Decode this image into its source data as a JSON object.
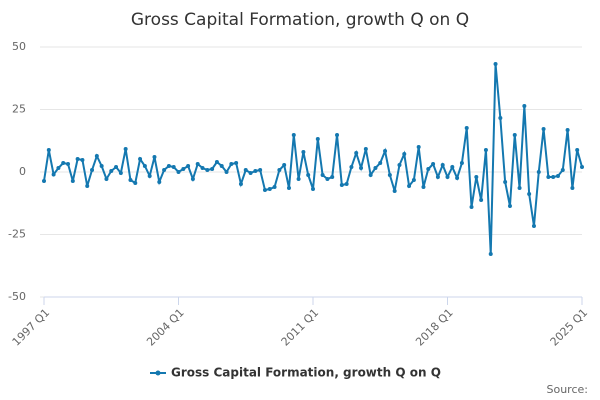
{
  "chart_data": {
    "type": "line",
    "title": "Gross Capital Formation, growth Q on Q",
    "source_label": "Source:",
    "categories": [
      "1997 Q1",
      null,
      null,
      null,
      null,
      null,
      null,
      null,
      null,
      null,
      null,
      null,
      null,
      null,
      null,
      null,
      null,
      null,
      null,
      null,
      null,
      null,
      null,
      null,
      null,
      null,
      null,
      null,
      "2004 Q1",
      null,
      null,
      null,
      null,
      null,
      null,
      null,
      null,
      null,
      null,
      null,
      null,
      null,
      null,
      null,
      null,
      null,
      null,
      null,
      null,
      null,
      null,
      null,
      null,
      null,
      null,
      null,
      "2011 Q1",
      null,
      null,
      null,
      null,
      null,
      null,
      null,
      null,
      null,
      null,
      null,
      null,
      null,
      null,
      null,
      null,
      null,
      null,
      null,
      null,
      null,
      null,
      null,
      null,
      null,
      null,
      null,
      "2018 Q1",
      null,
      null,
      null,
      null,
      null,
      null,
      null,
      null,
      null,
      null,
      null,
      null,
      null,
      null,
      null,
      null,
      null,
      null,
      null,
      null,
      null,
      null,
      null,
      null,
      null,
      null,
      null,
      "2025 Q1"
    ],
    "series": [
      {
        "name": "Gross Capital Formation, growth Q on Q",
        "color": "#1478b0",
        "values": [
          -3.6,
          8.8,
          -1,
          1.6,
          3.6,
          3.2,
          -3.6,
          5.2,
          4.8,
          -5.6,
          0.8,
          6.4,
          2.4,
          -2.8,
          0.4,
          2,
          -0.4,
          9.2,
          -3.2,
          -4.4,
          5.2,
          2.4,
          -1.6,
          6,
          -4,
          0.8,
          2.4,
          2,
          0,
          1.2,
          2.4,
          -2.8,
          3.2,
          1.6,
          0.8,
          1.2,
          4,
          2.4,
          0,
          3.2,
          3.6,
          -4.8,
          0.8,
          -0.4,
          0.4,
          0.8,
          -7.2,
          -6.8,
          -6,
          0.8,
          2.8,
          -6.4,
          14.8,
          -2.8,
          8,
          -1.2,
          -6.8,
          13.2,
          -1.2,
          -2.8,
          -2,
          14.8,
          -5.2,
          -4.8,
          2,
          7.6,
          1.6,
          9.2,
          -1.2,
          1.6,
          3.6,
          8.4,
          -1.2,
          -7.6,
          2.8,
          7.2,
          -5.6,
          -3.2,
          10,
          -6,
          1.2,
          3.2,
          -2,
          2.8,
          -2,
          2,
          -2.4,
          3.6,
          17.6,
          -14,
          -2,
          -11.2,
          8.8,
          -32.8,
          43.2,
          21.6,
          -4,
          -13.6,
          14.8,
          -6.4,
          26.4,
          -8.8,
          -21.6,
          0,
          17.2,
          -2,
          -2,
          -1.6,
          0.8,
          16.8,
          -6.4,
          8.8,
          2
        ]
      }
    ],
    "ylim": [
      -50,
      50
    ],
    "yticks": [
      -50,
      -25,
      0,
      25,
      50
    ],
    "grid": true,
    "legend": "bottom"
  }
}
